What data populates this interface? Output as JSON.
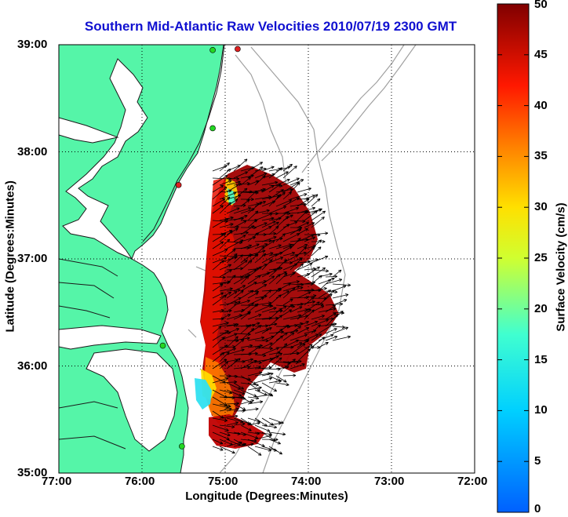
{
  "title": "Southern Mid-Atlantic Raw Velocities 2010/07/19 2300 GMT",
  "xlabel": "Longitude (Degrees:Minutes)",
  "ylabel": "Latitude (Degrees:Minutes)",
  "colorbar": {
    "label": "Surface Velocity (cm/s)",
    "ticks": [
      "50",
      "45",
      "40",
      "35",
      "30",
      "25",
      "20",
      "15",
      "10",
      "5",
      "0"
    ],
    "range": [
      0,
      50
    ],
    "colormap": "jet"
  },
  "axes": {
    "x_ticks": [
      "77:00",
      "76:00",
      "75:00",
      "74:00",
      "73:00",
      "72:00"
    ],
    "y_ticks": [
      "39:00",
      "38:00",
      "37:00",
      "36:00",
      "35:00"
    ],
    "lon_range": [
      -77,
      -72
    ],
    "lat_range": [
      35,
      39
    ],
    "grid": "dotted"
  },
  "colors": {
    "land": "#55f5a8",
    "water": "#ffffff",
    "bathymetry": "#a0a0a0",
    "title": "#1010d0",
    "station_green": "#22d822",
    "station_red": "#e02020"
  },
  "stations": [
    {
      "type": "green",
      "lon": -75.15,
      "lat": 38.95
    },
    {
      "type": "red",
      "lon": -74.85,
      "lat": 38.96
    },
    {
      "type": "green",
      "lon": -75.15,
      "lat": 38.22
    },
    {
      "type": "red",
      "lon": -75.56,
      "lat": 37.69
    },
    {
      "type": "green",
      "lon": -75.75,
      "lat": 36.19
    },
    {
      "type": "green",
      "lon": -75.52,
      "lat": 35.25
    }
  ]
}
